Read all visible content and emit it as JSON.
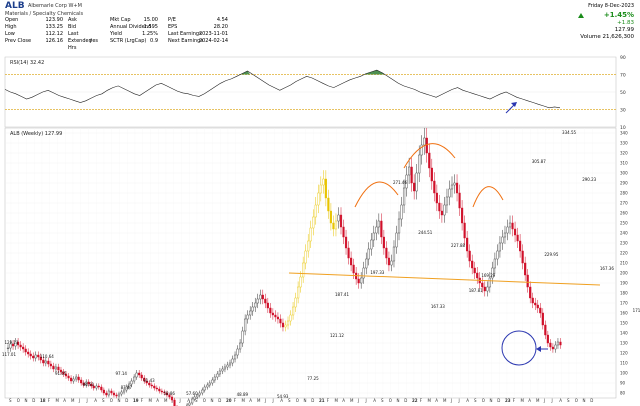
{
  "header": {
    "symbol": "ALB",
    "company": "Albemarle Corp  W+M",
    "sector": "Materials / Specialty Chemicals",
    "col1": [
      {
        "k": "Open",
        "v": "123.90"
      },
      {
        "k": "High",
        "v": "133.25"
      },
      {
        "k": "Low",
        "v": "112.12"
      },
      {
        "k": "Prev Close",
        "v": "126.16"
      }
    ],
    "col2": [
      {
        "k": "Ask",
        "v": ""
      },
      {
        "k": "Bid",
        "v": ""
      },
      {
        "k": "Last",
        "v": ""
      },
      {
        "k": "Extended Hrs",
        "v": "yes"
      }
    ],
    "col3": [
      {
        "k": "Mkt Cap",
        "v": "15.00"
      },
      {
        "k": "Annual Dividend",
        "v": "1.595"
      },
      {
        "k": "Yield",
        "v": "1.25%"
      },
      {
        "k": "SCTR (LrgCap)",
        "v": "0.9"
      }
    ],
    "col4": [
      {
        "k": "P/E",
        "v": "4.54"
      },
      {
        "k": "EPS",
        "v": "28.20"
      },
      {
        "k": "Last Earnings",
        "v": "2023-11-01"
      },
      {
        "k": "Next Earnings",
        "v": "2024-02-14"
      }
    ],
    "date": "Friday  8-Dec-2023",
    "change_pct": "+1.45%",
    "change_abs": "+1.83",
    "last": "127.99",
    "volume": "Volume  21,626,300"
  },
  "rsi_label": "RSI(14) 32.42",
  "price_label": "ALB (Weekly) 127.99",
  "chart_data": [
    {
      "type": "line",
      "name": "RSI(14)",
      "ylim": [
        10,
        90
      ],
      "yticks": [
        10,
        30,
        50,
        70,
        90
      ],
      "levels": [
        30,
        70
      ],
      "values": [
        53,
        50,
        48,
        45,
        42,
        44,
        47,
        50,
        52,
        49,
        46,
        44,
        42,
        40,
        38,
        40,
        43,
        46,
        48,
        52,
        55,
        57,
        54,
        51,
        48,
        46,
        50,
        54,
        58,
        60,
        57,
        54,
        51,
        49,
        48,
        46,
        45,
        48,
        52,
        56,
        60,
        63,
        65,
        68,
        71,
        74,
        70,
        66,
        62,
        58,
        55,
        52,
        55,
        58,
        62,
        65,
        68,
        66,
        63,
        60,
        57,
        55,
        58,
        61,
        64,
        66,
        68,
        71,
        73,
        75,
        72,
        68,
        64,
        60,
        57,
        55,
        53,
        50,
        48,
        46,
        44,
        47,
        50,
        53,
        55,
        52,
        50,
        48,
        46,
        44,
        42,
        45,
        48,
        50,
        47,
        44,
        42,
        40,
        38,
        36,
        34,
        32,
        33,
        32
      ]
    },
    {
      "type": "bar",
      "name": "ALB (Weekly)",
      "ylim": [
        75,
        345
      ],
      "yticks": [
        80,
        90,
        100,
        110,
        120,
        130,
        140,
        150,
        160,
        170,
        180,
        190,
        200,
        210,
        220,
        230,
        240,
        250,
        260,
        270,
        280,
        290,
        300,
        310,
        320,
        330,
        340
      ],
      "x_labels": [
        "S",
        "O",
        "N",
        "D",
        "18",
        "F",
        "M",
        "A",
        "M",
        "J",
        "J",
        "A",
        "S",
        "O",
        "N",
        "D",
        "19",
        "F",
        "M",
        "A",
        "M",
        "J",
        "J",
        "A",
        "S",
        "O",
        "N",
        "D",
        "20",
        "F",
        "M",
        "A",
        "M",
        "J",
        "J",
        "A",
        "S",
        "O",
        "N",
        "D",
        "21",
        "F",
        "M",
        "A",
        "M",
        "J",
        "J",
        "A",
        "S",
        "O",
        "N",
        "D",
        "22",
        "F",
        "M",
        "A",
        "M",
        "J",
        "J",
        "A",
        "S",
        "O",
        "N",
        "D",
        "23",
        "F",
        "M",
        "A",
        "M",
        "J",
        "J",
        "A",
        "S",
        "O",
        "N",
        "D"
      ],
      "closes": [
        125,
        129,
        127,
        131,
        128,
        126,
        124,
        121,
        119,
        117,
        115,
        118,
        116,
        113,
        110,
        112,
        109,
        107,
        104,
        106,
        103,
        101,
        99,
        97,
        95,
        92,
        94,
        96,
        93,
        90,
        88,
        91,
        89,
        87,
        85,
        87,
        86,
        83,
        80,
        78,
        82,
        80,
        78,
        77,
        79,
        81,
        83,
        86,
        89,
        92,
        96,
        100,
        98,
        95,
        92,
        90,
        88,
        87,
        85,
        84,
        82,
        81,
        80,
        78,
        76,
        73,
        66,
        60,
        58,
        62,
        64,
        68,
        70,
        74,
        76,
        78,
        80,
        83,
        86,
        88,
        90,
        93,
        96,
        99,
        102,
        104,
        106,
        108,
        110,
        114,
        118,
        124,
        130,
        142,
        154,
        158,
        162,
        166,
        170,
        174,
        178,
        174,
        170,
        165,
        160,
        158,
        156,
        154,
        150,
        146,
        148,
        152,
        158,
        166,
        175,
        186,
        196,
        210,
        222,
        232,
        245,
        256,
        268,
        280,
        288,
        294,
        275,
        262,
        250,
        244,
        252,
        258,
        246,
        236,
        225,
        215,
        208,
        200,
        194,
        190,
        195,
        205,
        214,
        224,
        233,
        240,
        246,
        252,
        236,
        225,
        215,
        208,
        212,
        226,
        240,
        254,
        268,
        285,
        298,
        306,
        290,
        282,
        300,
        318,
        328,
        335,
        320,
        305,
        292,
        280,
        270,
        262,
        258,
        268,
        276,
        284,
        288,
        290,
        280,
        265,
        250,
        235,
        222,
        212,
        205,
        200,
        195,
        190,
        186,
        182,
        186,
        195,
        205,
        214,
        222,
        230,
        236,
        240,
        246,
        250,
        244,
        238,
        232,
        222,
        210,
        198,
        186,
        175,
        170,
        168,
        165,
        160,
        148,
        138,
        130,
        126,
        124,
        128,
        131,
        128
      ],
      "annotations": [
        {
          "text": "129.11",
          "x": 1,
          "y": 129
        },
        {
          "text": "117.01",
          "x": 0,
          "y": 117
        },
        {
          "text": "110.64",
          "x": 15,
          "y": 115
        },
        {
          "text": "91.65",
          "x": 21,
          "y": 98
        },
        {
          "text": "84.81",
          "x": 32,
          "y": 87
        },
        {
          "text": "97.14",
          "x": 45,
          "y": 98
        },
        {
          "text": "87.87",
          "x": 47,
          "y": 84
        },
        {
          "text": "91.43",
          "x": 56,
          "y": 91
        },
        {
          "text": "58.86",
          "x": 64,
          "y": 78
        },
        {
          "text": "57.60",
          "x": 73,
          "y": 78
        },
        {
          "text": "48.89",
          "x": 93,
          "y": 77
        },
        {
          "text": "54.93",
          "x": 109,
          "y": 75
        },
        {
          "text": "77.25",
          "x": 121,
          "y": 93
        },
        {
          "text": "121.12",
          "x": 130,
          "y": 136
        },
        {
          "text": "187.41",
          "x": 132,
          "y": 177
        },
        {
          "text": "197.33",
          "x": 146,
          "y": 199
        },
        {
          "text": "271.46",
          "x": 155,
          "y": 289
        },
        {
          "text": "244.51",
          "x": 165,
          "y": 239
        },
        {
          "text": "167.33",
          "x": 170,
          "y": 165
        },
        {
          "text": "227.88",
          "x": 178,
          "y": 226
        },
        {
          "text": "187.81",
          "x": 185,
          "y": 181
        },
        {
          "text": "169.29",
          "x": 190,
          "y": 196
        },
        {
          "text": "305.87",
          "x": 210,
          "y": 310
        },
        {
          "text": "229.95",
          "x": 215,
          "y": 217
        },
        {
          "text": "334.55",
          "x": 222,
          "y": 339
        },
        {
          "text": "290.23",
          "x": 230,
          "y": 292
        },
        {
          "text": "167.36",
          "x": 237,
          "y": 203
        },
        {
          "text": "171.35",
          "x": 250,
          "y": 161
        },
        {
          "text": "178.39",
          "x": 262,
          "y": 178
        },
        {
          "text": "261.10",
          "x": 267,
          "y": 262
        },
        {
          "text": "203.16",
          "x": 270,
          "y": 219
        },
        {
          "text": "122.66",
          "x": 274,
          "y": 108
        },
        {
          "text": "117.99",
          "x": 302,
          "y": 128
        }
      ]
    }
  ]
}
